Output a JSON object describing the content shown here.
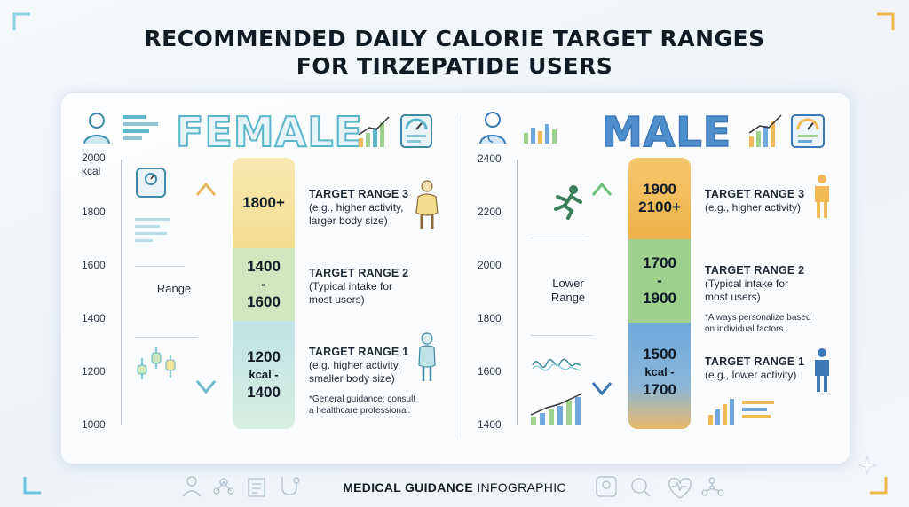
{
  "title_line1": "RECOMMENDED DAILY CALORIE TARGET RANGES",
  "title_line2": "FOR TIRZEPATIDE USERS",
  "female": {
    "heading": "FEMALE",
    "axis_unit": "kcal",
    "ticks": [
      "2000",
      "1800",
      "1600",
      "1400",
      "1200",
      "1000"
    ],
    "side_label": "Range",
    "segments": [
      {
        "lines": [
          "1800+"
        ],
        "color": "#f5e29a"
      },
      {
        "lines": [
          "1400",
          "-",
          "1600"
        ],
        "color": "#cfe8bf"
      },
      {
        "lines": [
          "1200",
          "kcal -",
          "1400"
        ],
        "color": "#bfe3e6"
      }
    ],
    "ranges": [
      {
        "title": "TARGET RANGE 3",
        "desc1": "(e.g., higher activity,",
        "desc2": "larger body size)"
      },
      {
        "title": "TARGET RANGE 2",
        "desc1": "(Typical intake for",
        "desc2": "most users)"
      },
      {
        "title": "TARGET RANGE 1",
        "desc1": "(e.g. higher activity,",
        "desc2": "smaller body size)"
      }
    ],
    "note1": "*General guidance; consult",
    "note2": "a healthcare professional."
  },
  "male": {
    "heading": "MALE",
    "ticks": [
      "2400",
      "2200",
      "2000",
      "1800",
      "1600",
      "1400"
    ],
    "side_label1": "Lower",
    "side_label2": "Range",
    "segments": [
      {
        "lines": [
          "1900",
          "2100+"
        ],
        "color": "#f1b955"
      },
      {
        "lines": [
          "1700",
          "-",
          "1900"
        ],
        "color": "#9fd08d"
      },
      {
        "lines": [
          "1500",
          "kcal -",
          "1700"
        ],
        "color": "#6fa8dc"
      }
    ],
    "ranges": [
      {
        "title": "TARGET RANGE 3",
        "desc1": "(e.g., higher activity)",
        "desc2": ""
      },
      {
        "title": "TARGET RANGE 2",
        "desc1": "(Typical intake for",
        "desc2": "most users)"
      },
      {
        "title": "TARGET RANGE 1",
        "desc1": "(e.g., lower activity)",
        "desc2": ""
      }
    ],
    "note1": "*Always personalize based",
    "note2": "on individual factors."
  },
  "footer_bold": "MEDICAL GUIDANCE",
  "footer_rest": " INFOGRAPHIC",
  "icons": [
    "person-icon",
    "doctor-icon",
    "bar-chart-icon",
    "gauge-icon",
    "scale-icon",
    "runner-icon",
    "body-silhouette-icon",
    "footer-icons"
  ],
  "colors": {
    "female_accent": "#5bb6c9",
    "male_accent": "#4f8fce",
    "corner_blue": "#6cc3de",
    "corner_gold": "#f0b64a"
  }
}
